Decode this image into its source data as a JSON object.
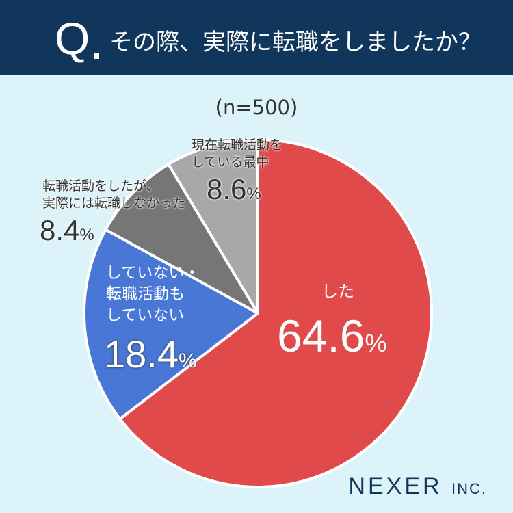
{
  "header": {
    "q": "Q",
    "title": "その際、実際に転職をしましたか？"
  },
  "chart_data": {
    "type": "pie",
    "title": "その際、実際に転職をしましたか？",
    "subtitle": "(n=500)",
    "unit": "%",
    "slices": [
      {
        "label": "した",
        "value": 64.6,
        "color": "#e04a4a"
      },
      {
        "label": "していない・転職活動もしていない",
        "value": 18.4,
        "color": "#4877d6"
      },
      {
        "label": "転職活動をしたが、実際には転職しなかった",
        "value": 8.4,
        "color": "#767676"
      },
      {
        "label": "現在転職活動をしている最中",
        "value": 8.6,
        "color": "#a8a8a8"
      }
    ]
  },
  "labels": {
    "s0": {
      "l1": "した",
      "v": "64.6"
    },
    "s1": {
      "l1": "していない・",
      "l2": "転職活動も",
      "l3": "していない",
      "v": "18.4"
    },
    "s2": {
      "l1": "転職活動をしたが、",
      "l2": "実際には転職しなかった",
      "v": "8.4"
    },
    "s3": {
      "l1": "現在転職活動を",
      "l2": "している最中",
      "v": "8.6"
    },
    "pct": "%"
  },
  "logo": {
    "main": "NEXER",
    "sub": "INC."
  }
}
